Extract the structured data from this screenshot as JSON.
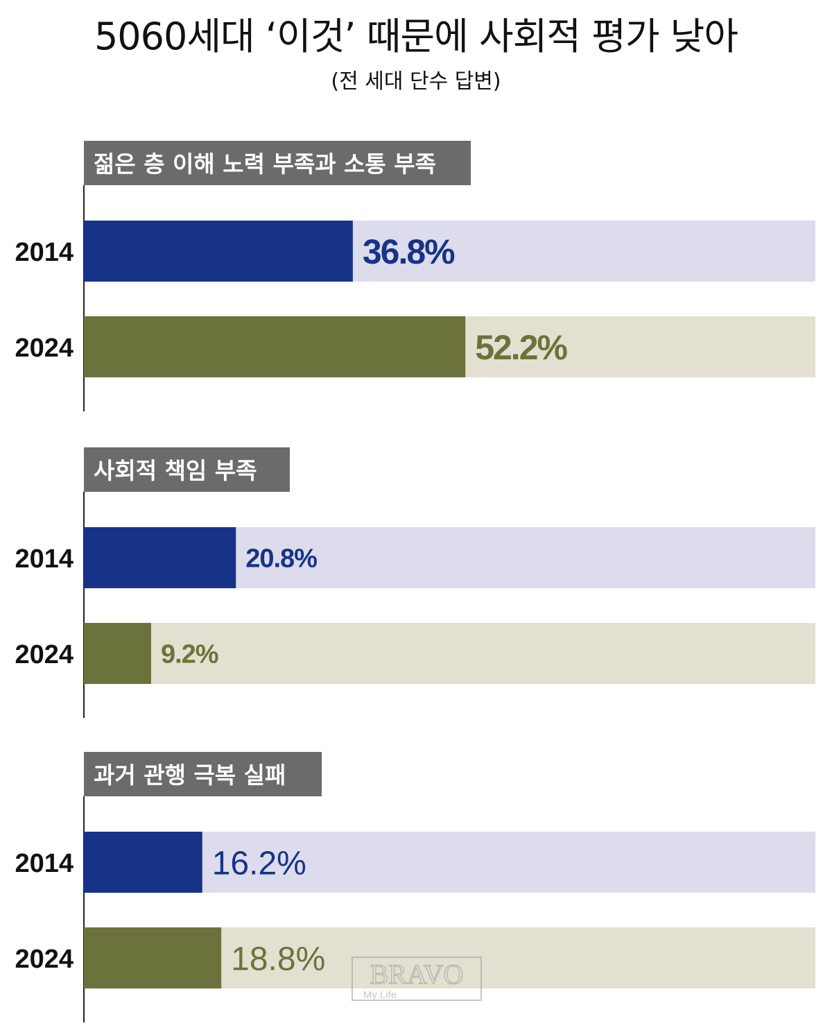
{
  "title": "5060세대 ‘이것’ 때문에 사회적 평가 낮아",
  "subtitle": "(전 세대 단수 답변)",
  "colors": {
    "year_2014_bar": "#173387",
    "year_2014_track": "#dddcec",
    "year_2024_bar": "#6c723b",
    "year_2024_track": "#e3e0d1",
    "category_label_bg": "#6b6b6b"
  },
  "watermark": {
    "brand": "BRAVO",
    "sub": "My Life"
  },
  "chart_data": {
    "type": "bar",
    "orientation": "horizontal",
    "xlim": [
      0,
      100
    ],
    "unit": "%",
    "groups": [
      {
        "category": "젊은 층 이해 노력 부족과 소통 부족",
        "bars": [
          {
            "year": "2014",
            "value": 36.8,
            "label": "36.8%"
          },
          {
            "year": "2024",
            "value": 52.2,
            "label": "52.2%"
          }
        ]
      },
      {
        "category": "사회적 책임 부족",
        "bars": [
          {
            "year": "2014",
            "value": 20.8,
            "label": "20.8%"
          },
          {
            "year": "2024",
            "value": 9.2,
            "label": "9.2%"
          }
        ]
      },
      {
        "category": "과거 관행 극복 실패",
        "bars": [
          {
            "year": "2014",
            "value": 16.2,
            "label": "16.2%"
          },
          {
            "year": "2024",
            "value": 18.8,
            "label": "18.8%"
          }
        ]
      }
    ]
  }
}
